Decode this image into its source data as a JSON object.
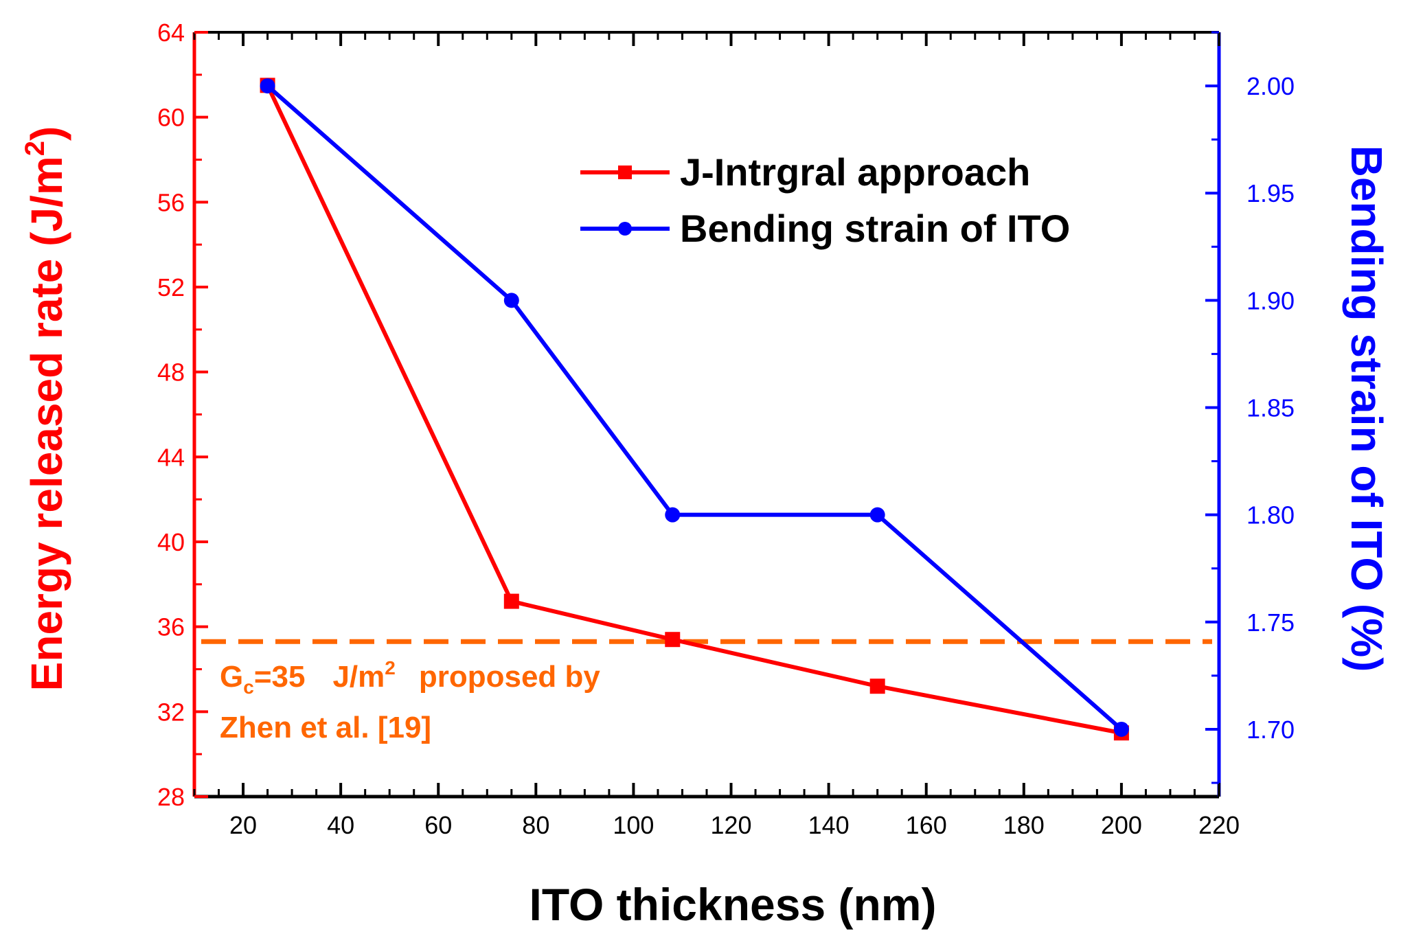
{
  "chart_data": {
    "type": "line",
    "x": [
      25,
      75,
      108,
      150,
      200
    ],
    "xlabel": "ITO thickness (nm)",
    "xlim": [
      10,
      220
    ],
    "xticks": [
      20,
      40,
      60,
      80,
      100,
      120,
      140,
      160,
      180,
      200,
      220
    ],
    "series": [
      {
        "name": "J-Intrgral approach",
        "axis": "left",
        "marker": "square",
        "color": "#ff0000",
        "x": [
          25,
          75,
          108,
          150,
          200
        ],
        "values": [
          61.5,
          37.2,
          35.4,
          33.2,
          31.0
        ]
      },
      {
        "name": "Bending strain of ITO",
        "axis": "right",
        "marker": "circle",
        "color": "#0000ff",
        "x": [
          25,
          75,
          108,
          150,
          200
        ],
        "values": [
          2.0,
          1.9,
          1.8,
          1.8,
          1.7
        ]
      }
    ],
    "left_axis": {
      "label_main": "Energy released rate (J/m",
      "label_sup": "2",
      "label_end": ")",
      "ylim": [
        28,
        64
      ],
      "ticks": [
        28,
        32,
        36,
        40,
        44,
        48,
        52,
        56,
        60,
        64
      ],
      "color": "#ff0000"
    },
    "right_axis": {
      "label": "Bending strain of ITO (%)",
      "ylim": [
        1.6686,
        2.025
      ],
      "ticks": [
        1.7,
        1.75,
        1.8,
        1.85,
        1.9,
        1.95,
        2.0
      ],
      "tick_labels": [
        "1.70",
        "1.75",
        "1.80",
        "1.85",
        "1.90",
        "1.95",
        "2.00"
      ],
      "color": "#0000ff"
    },
    "reference_line": {
      "value": 35.3,
      "axis": "left",
      "style": "dashed",
      "color": "#ff6600"
    },
    "annotation": {
      "line1_prefix": "G",
      "line1_sub": "c",
      "line1_eq": "=35",
      "line1_unit": "J/m",
      "line1_sup": "2",
      "line1_rest": "proposed  by",
      "line2": "Zhen et al. [19]",
      "color": "#ff6600"
    },
    "legend_position": "top-right"
  }
}
